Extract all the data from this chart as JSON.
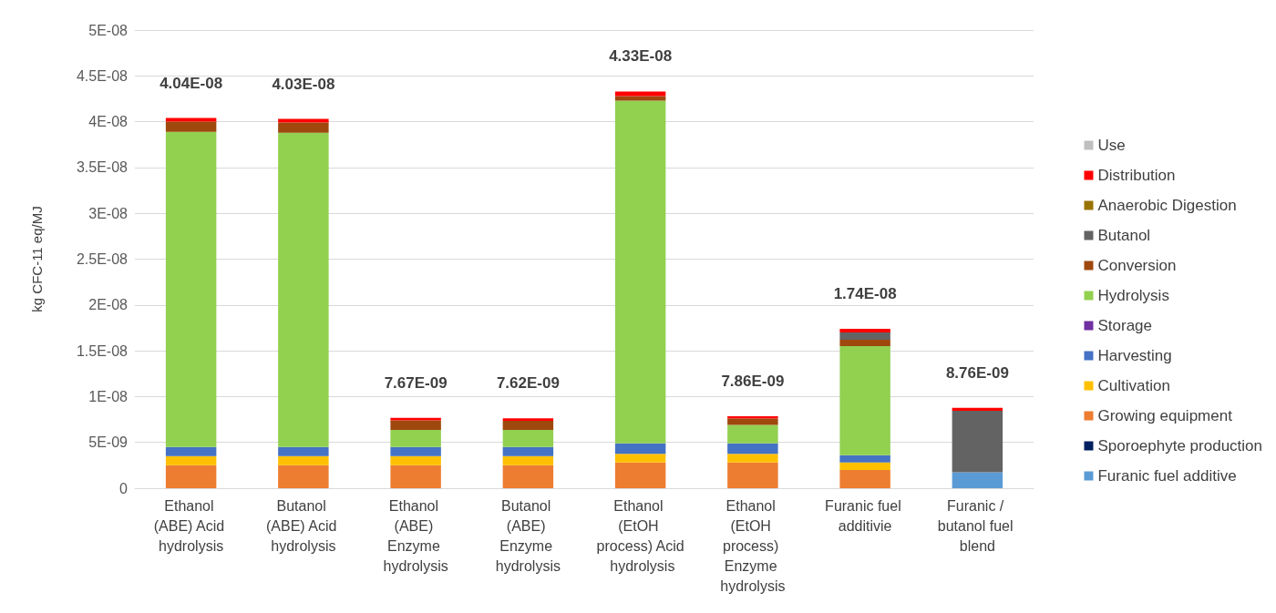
{
  "chart_data": {
    "type": "bar",
    "stacked": true,
    "ylabel": "kg CFC-11 eq/MJ",
    "categories": [
      "Ethanol (ABE) Acid hydrolysis",
      "Butanol (ABE) Acid hydrolysis",
      "Ethanol (ABE) Enzyme hydrolysis",
      "Butanol (ABE) Enzyme hydrolysis",
      "Ethanol (EtOH process) Acid hydrolysis",
      "Ethanol (EtOH process) Enzyme hydrolysis",
      "Furanic fuel additivie",
      "Furanic / butanol fuel blend"
    ],
    "series": [
      {
        "name": "Furanic fuel additive",
        "color": "#5b9bd5",
        "values": [
          0,
          0,
          0,
          0,
          0,
          0,
          0,
          1.75e-09
        ]
      },
      {
        "name": "Sporoephyte production",
        "color": "#002060",
        "values": [
          0,
          0,
          0,
          0,
          0,
          0,
          0,
          0
        ]
      },
      {
        "name": "Growing equipment",
        "color": "#ed7d31",
        "values": [
          2.5e-09,
          2.5e-09,
          2.5e-09,
          2.5e-09,
          2.8e-09,
          2.8e-09,
          2e-09,
          0
        ]
      },
      {
        "name": "Cultivation",
        "color": "#ffc000",
        "values": [
          1e-09,
          1e-09,
          1e-09,
          1e-09,
          9.5e-10,
          9.5e-10,
          8e-10,
          0
        ]
      },
      {
        "name": "Harvesting",
        "color": "#4472c4",
        "values": [
          1e-09,
          1e-09,
          1e-09,
          1e-09,
          1.15e-09,
          1.15e-09,
          8e-10,
          0
        ]
      },
      {
        "name": "Storage",
        "color": "#7030a0",
        "values": [
          0,
          0,
          0,
          0,
          0,
          0,
          0,
          0
        ]
      },
      {
        "name": "Hydrolysis",
        "color": "#92d050",
        "values": [
          3.44e-08,
          3.43e-08,
          1.86e-09,
          1.85e-09,
          3.74e-08,
          2e-09,
          1.19e-08,
          0
        ]
      },
      {
        "name": "Conversion",
        "color": "#9e480e",
        "values": [
          1.1e-09,
          1.1e-09,
          1.04e-09,
          1e-09,
          5e-10,
          7e-10,
          7e-10,
          0
        ]
      },
      {
        "name": "Butanol",
        "color": "#636363",
        "values": [
          0,
          0,
          0,
          0,
          0,
          0,
          8e-10,
          6.7e-09
        ]
      },
      {
        "name": "Anaerobic Digestion",
        "color": "#997300",
        "values": [
          0,
          0,
          0,
          0,
          0,
          0,
          0,
          0
        ]
      },
      {
        "name": "Distribution",
        "color": "#ff0000",
        "values": [
          4e-10,
          4e-10,
          2.7e-10,
          2.7e-10,
          5e-10,
          2.6e-10,
          4e-10,
          3.1e-10
        ]
      },
      {
        "name": "Use",
        "color": "#bfbfbf",
        "values": [
          0,
          0,
          0,
          0,
          0,
          0,
          0,
          0
        ]
      }
    ],
    "totals": [
      "4.04E-08",
      "4.03E-08",
      "7.67E-09",
      "7.62E-09",
      "4.33E-08",
      "7.86E-09",
      "1.74E-08",
      "8.76E-09"
    ],
    "ylim": [
      0,
      5e-08
    ],
    "yticks": [
      0,
      {
        "value": 5e-09,
        "label": "5E-09"
      },
      {
        "value": 1e-08,
        "label": "1E-08"
      },
      {
        "value": 1.5e-08,
        "label": "1.5E-08"
      },
      {
        "value": 2e-08,
        "label": "2E-08"
      },
      {
        "value": 2.5e-08,
        "label": "2.5E-08"
      },
      {
        "value": 3e-08,
        "label": "3E-08"
      },
      {
        "value": 3.5e-08,
        "label": "3.5E-08"
      },
      {
        "value": 4e-08,
        "label": "4E-08"
      },
      {
        "value": 4.5e-08,
        "label": "4.5E-08"
      },
      {
        "value": 5e-08,
        "label": "5E-08"
      }
    ],
    "grid": "y",
    "legend": "right"
  }
}
